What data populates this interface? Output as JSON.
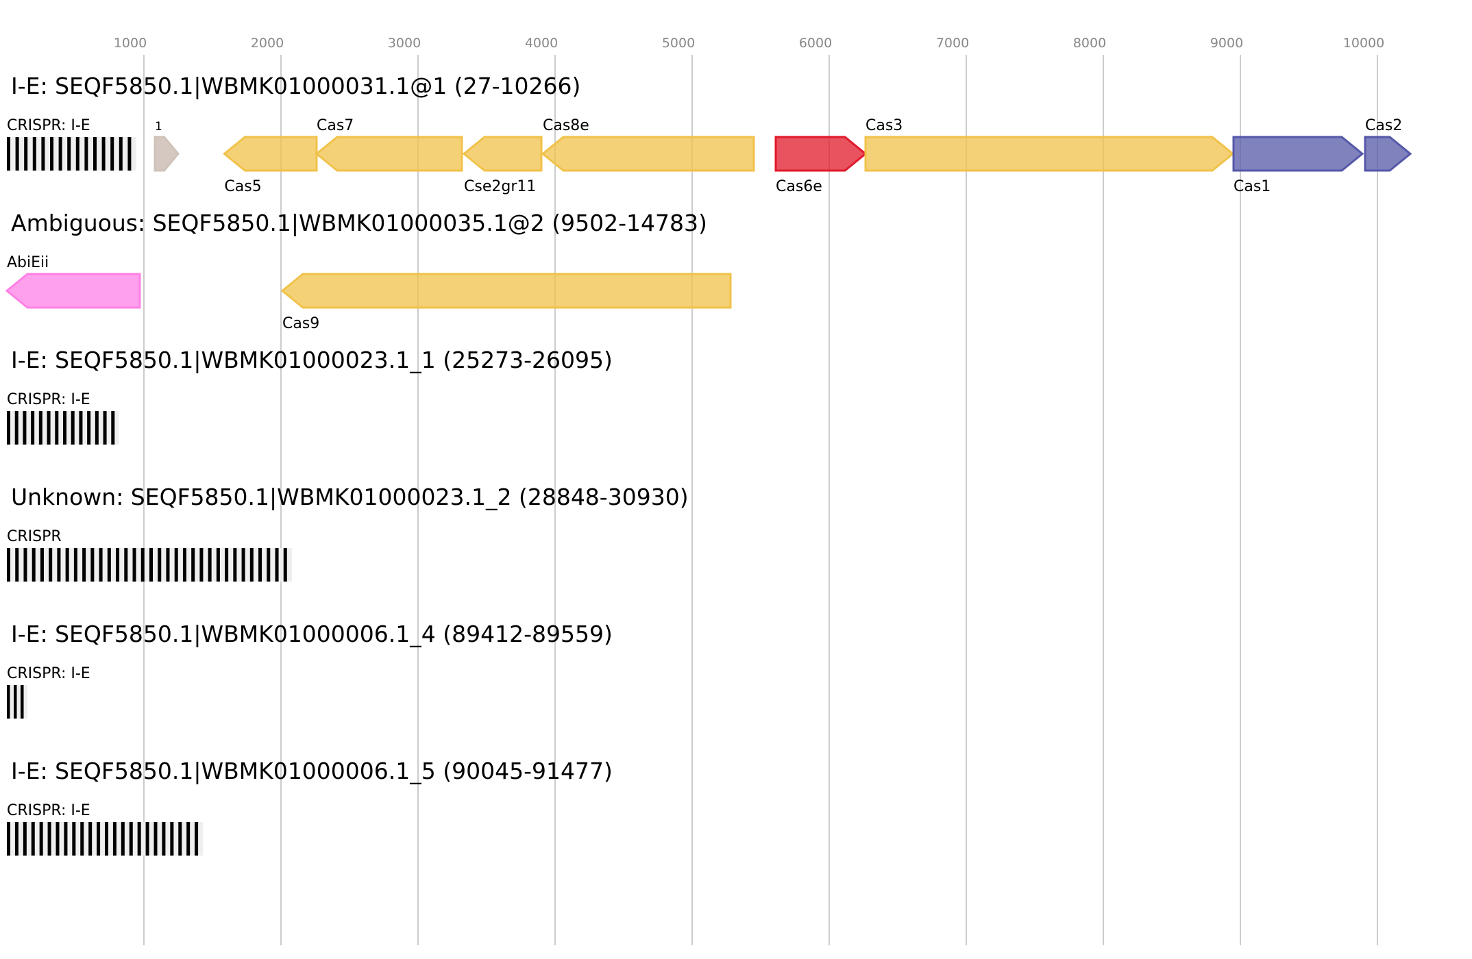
{
  "axis": {
    "ticks": [
      1000,
      2000,
      3000,
      4000,
      5000,
      6000,
      7000,
      8000,
      9000,
      10000
    ],
    "tick_color": "#888888",
    "grid_color": "#bbbbbb",
    "bp_range": [
      0,
      10500
    ]
  },
  "colors": {
    "cas_core": "#f0c24a",
    "cas6e": "#e0192a",
    "adaptation": "#5558a8",
    "abi": "#ff80e6",
    "unknown": "#d5c8c0",
    "crispr": "#000000"
  },
  "rows": [
    {
      "title": "I-E: SEQF5850.1|WBMK01000031.1@1 (27-10266)",
      "features": [
        {
          "type": "crispr",
          "label": "CRISPR: I-E",
          "start": 0,
          "end": 945,
          "repeats": 15,
          "label_pos": "above"
        },
        {
          "type": "gene",
          "label": "1",
          "start": 1080,
          "end": 1250,
          "strand": 1,
          "color_key": "unknown",
          "label_pos": "above",
          "small": true
        },
        {
          "type": "gene",
          "label": "Cas5",
          "start": 1587,
          "end": 2260,
          "strand": -1,
          "color_key": "cas_core",
          "label_pos": "below"
        },
        {
          "type": "gene",
          "label": "Cas7",
          "start": 2260,
          "end": 3320,
          "strand": -1,
          "color_key": "cas_core",
          "label_pos": "above"
        },
        {
          "type": "gene",
          "label": "Cse2gr11",
          "start": 3335,
          "end": 3900,
          "strand": -1,
          "color_key": "cas_core",
          "label_pos": "below"
        },
        {
          "type": "gene",
          "label": "Cas8e",
          "start": 3910,
          "end": 5450,
          "strand": -1,
          "color_key": "cas_core",
          "label_pos": "above"
        },
        {
          "type": "gene",
          "label": "Cas6e",
          "start": 5610,
          "end": 6265,
          "strand": 1,
          "color_key": "cas6e",
          "label_pos": "below"
        },
        {
          "type": "gene",
          "label": "Cas3",
          "start": 6265,
          "end": 8945,
          "strand": 1,
          "color_key": "cas_core",
          "label_pos": "above"
        },
        {
          "type": "gene",
          "label": "Cas1",
          "start": 8950,
          "end": 9890,
          "strand": 1,
          "color_key": "adaptation",
          "label_pos": "below"
        },
        {
          "type": "gene",
          "label": "Cas2",
          "start": 9910,
          "end": 10240,
          "strand": 1,
          "color_key": "adaptation",
          "label_pos": "above"
        }
      ]
    },
    {
      "title": "Ambiguous: SEQF5850.1|WBMK01000035.1@2 (9502-14783)",
      "features": [
        {
          "type": "gene",
          "label": "AbiEii",
          "start": 0,
          "end": 970,
          "strand": -1,
          "color_key": "abi",
          "label_pos": "above"
        },
        {
          "type": "gene",
          "label": "Cas9",
          "start": 2010,
          "end": 5280,
          "strand": -1,
          "color_key": "cas_core",
          "label_pos": "below"
        }
      ]
    },
    {
      "title": "I-E: SEQF5850.1|WBMK01000023.1_1 (25273-26095)",
      "features": [
        {
          "type": "crispr",
          "label": "CRISPR: I-E",
          "start": 0,
          "end": 820,
          "repeats": 14,
          "label_pos": "above"
        }
      ]
    },
    {
      "title": "Unknown: SEQF5850.1|WBMK01000023.1_2 (28848-30930)",
      "features": [
        {
          "type": "crispr",
          "label": "CRISPR",
          "start": 0,
          "end": 2080,
          "repeats": 34,
          "label_pos": "above"
        }
      ]
    },
    {
      "title": "I-E: SEQF5850.1|WBMK01000006.1_4 (89412-89559)",
      "features": [
        {
          "type": "crispr",
          "label": "CRISPR: I-E",
          "start": 0,
          "end": 150,
          "repeats": 3,
          "label_pos": "above"
        }
      ]
    },
    {
      "title": "I-E: SEQF5850.1|WBMK01000006.1_5 (90045-91477)",
      "features": [
        {
          "type": "crispr",
          "label": "CRISPR: I-E",
          "start": 0,
          "end": 1430,
          "repeats": 24,
          "label_pos": "above"
        }
      ]
    }
  ]
}
